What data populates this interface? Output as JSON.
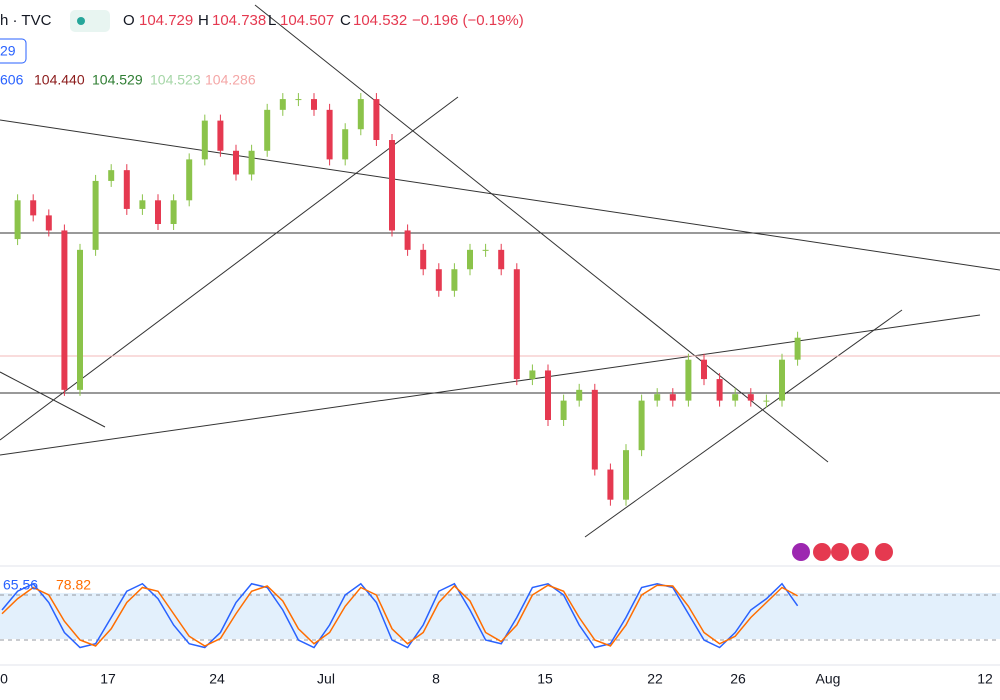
{
  "header": {
    "symbol": "h · TVC",
    "o_label": "O",
    "open": "104.729",
    "h_label": "H",
    "high": "104.738",
    "l_label": "L",
    "low": "104.507",
    "c_label": "C",
    "change": "−0.196 (−0.19%)",
    "badge": "29"
  },
  "indicators": [
    "606",
    "104.440",
    "104.529",
    "104.523",
    "104.286"
  ],
  "chart_data": [
    {
      "type": "candlestick",
      "name": "price",
      "values": [
        104.99,
        105.17,
        105.1,
        105.03,
        104.29,
        104.94,
        105.26,
        105.31,
        105.13,
        105.17,
        105.06,
        105.17,
        105.36,
        105.54,
        105.4,
        105.29,
        105.4,
        105.59,
        105.64,
        105.64,
        105.59,
        105.36,
        105.5,
        105.64,
        105.45,
        105.03,
        104.94,
        104.85,
        104.75,
        104.85,
        104.94,
        104.94,
        104.85,
        104.34,
        104.38,
        104.15,
        104.24,
        104.29,
        103.92,
        103.78,
        104.01,
        104.24,
        104.27,
        104.24,
        104.43,
        104.34,
        104.24,
        104.27,
        104.24,
        104.24,
        104.43,
        104.532
      ],
      "up_color": "#8bc34a",
      "down_color": "#e53950",
      "ylim": [
        103.5,
        106.1
      ],
      "x_labels": [
        "0",
        "17",
        "24",
        "Jul",
        "8",
        "15",
        "22",
        "26",
        "Aug",
        "12"
      ]
    },
    {
      "type": "line",
      "name": "stochastic",
      "ylim": [
        0,
        100
      ],
      "series": [
        {
          "color": "#2962ff",
          "values": [
            60,
            85,
            95,
            70,
            30,
            10,
            15,
            50,
            85,
            95,
            75,
            40,
            15,
            10,
            30,
            70,
            95,
            90,
            60,
            20,
            10,
            40,
            80,
            95,
            70,
            20,
            10,
            40,
            85,
            95,
            60,
            20,
            15,
            50,
            90,
            95,
            80,
            40,
            10,
            15,
            50,
            90,
            95,
            90,
            55,
            20,
            10,
            30,
            60,
            75,
            95,
            65.56
          ]
        },
        {
          "color": "#ff6d00",
          "values": [
            55,
            75,
            90,
            80,
            45,
            20,
            12,
            35,
            70,
            90,
            85,
            55,
            25,
            12,
            22,
            55,
            85,
            92,
            72,
            35,
            15,
            30,
            65,
            90,
            80,
            35,
            15,
            30,
            70,
            92,
            72,
            30,
            18,
            40,
            80,
            93,
            85,
            50,
            20,
            12,
            40,
            80,
            93,
            92,
            65,
            30,
            15,
            25,
            50,
            70,
            90,
            78.82
          ]
        }
      ],
      "band": [
        20,
        80
      ]
    }
  ]
}
